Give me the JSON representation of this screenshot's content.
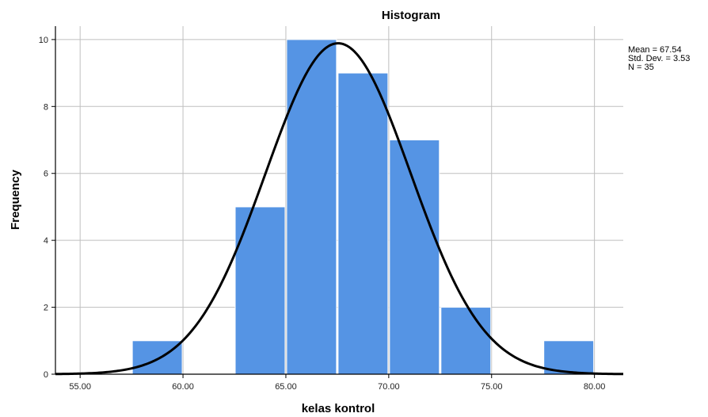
{
  "chart_data": {
    "type": "bar",
    "title": "Histogram",
    "xlabel": "kelas kontrol",
    "ylabel": "Frequency",
    "xlim": [
      53.8,
      81.4
    ],
    "ylim": [
      0,
      10.4
    ],
    "x_ticks": [
      "55.00",
      "60.00",
      "65.00",
      "70.00",
      "75.00",
      "80.00"
    ],
    "y_ticks": [
      "0",
      "2",
      "4",
      "6",
      "8",
      "10"
    ],
    "grid": true,
    "bin_width": 2.5,
    "bins": [
      {
        "start": 57.5,
        "end": 60.0,
        "value": 1
      },
      {
        "start": 60.0,
        "end": 62.5,
        "value": 0
      },
      {
        "start": 62.5,
        "end": 65.0,
        "value": 5
      },
      {
        "start": 65.0,
        "end": 67.5,
        "value": 10
      },
      {
        "start": 67.5,
        "end": 70.0,
        "value": 9
      },
      {
        "start": 70.0,
        "end": 72.5,
        "value": 7
      },
      {
        "start": 72.5,
        "end": 75.0,
        "value": 2
      },
      {
        "start": 75.0,
        "end": 77.5,
        "value": 0
      },
      {
        "start": 77.5,
        "end": 80.0,
        "value": 1
      }
    ],
    "normal_curve": {
      "mean": 67.54,
      "std_dev": 3.53,
      "n": 35
    },
    "stats_labels": [
      "Mean = 67.54",
      "Std. Dev. = 3.53",
      "N = 35"
    ],
    "colors": {
      "bar": "#5594E4",
      "bar_edge": "#ffffff",
      "curve": "#000000",
      "grid": "#BFBFBF",
      "axis": "#000000"
    }
  }
}
